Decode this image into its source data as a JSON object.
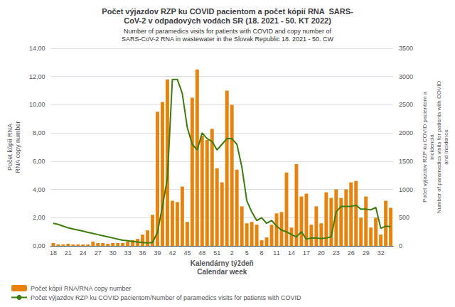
{
  "chart_data": {
    "type": "bar",
    "title": "Počet výjazdov RZP ku COVID pacientom a počet kópií RNA  SARS-\nCoV-2 v odpadových vodách SR (18. 2021 - 50. KT 2022)",
    "subtitle": "Number of paramedics visits for patients with COVID and copy number of\nSARS-CoV-2 RNA in wastewater in the Slovak Republic 18. 2021 - 50. CW",
    "xlabel": "Kalendárny týždeň\nCalendar week",
    "ylabel": "Počet kópií RNA\nRNA copy number",
    "y2label": "Počet výjazdov RZP ku COVID pacientom a\nincidencia\nNumber of paramedics visits for patients with COVID\nand incidence",
    "categories": [
      "18",
      null,
      null,
      "21",
      null,
      null,
      "24",
      null,
      null,
      "27",
      null,
      null,
      "30",
      null,
      null,
      "33",
      null,
      null,
      "36",
      null,
      null,
      "39",
      null,
      null,
      "42",
      null,
      null,
      "45",
      null,
      null,
      "48",
      null,
      null,
      "51",
      null,
      null,
      "2",
      null,
      null,
      "5",
      null,
      null,
      "8",
      null,
      null,
      "11",
      null,
      null,
      "14",
      null,
      null,
      "17",
      null,
      null,
      "20",
      null,
      null,
      "23",
      null,
      null,
      "26",
      null,
      null,
      "29",
      null,
      null,
      "32",
      null,
      null
    ],
    "series": [
      {
        "name": "Počet kópií RNA/RNA copy number",
        "type": "bar",
        "color": "#E8820A",
        "values": [
          0.2,
          0.1,
          0.1,
          0.15,
          0.1,
          0.1,
          0.1,
          0.1,
          0.3,
          0.2,
          0.2,
          0.15,
          0.2,
          0.2,
          0.2,
          0.3,
          0.4,
          0.5,
          0.8,
          1.1,
          2.2,
          9.5,
          10.2,
          11.8,
          3.2,
          3.1,
          4.2,
          1.7,
          10.5,
          12.5,
          7.8,
          7.5,
          8.3,
          5.5,
          4.5,
          11.0,
          10.0,
          5.4,
          2.8,
          1.6,
          1.7,
          1.5,
          0.4,
          0.6,
          1.5,
          2.3,
          2.4,
          5.2,
          1.3,
          5.8,
          3.5,
          3.7,
          1.5,
          2.8,
          1.6,
          3.8,
          3.4,
          4.0,
          3.4,
          4.0,
          4.5,
          4.6,
          2.0,
          3.5,
          1.3,
          2.0,
          0.8,
          3.2,
          2.7
        ]
      },
      {
        "name": "Počet výjazdov RZP ku COVID pacientom/Number of paramedics visits for patients with COVID",
        "type": "line",
        "color": "#3A7D0A",
        "axis": "y2",
        "values": [
          400,
          380,
          350,
          320,
          300,
          280,
          260,
          240,
          220,
          200,
          180,
          160,
          140,
          120,
          100,
          90,
          80,
          70,
          60,
          55,
          60,
          240,
          700,
          1200,
          2950,
          2950,
          2700,
          2100,
          1800,
          1700,
          2000,
          1900,
          1850,
          1700,
          1800,
          1900,
          1900,
          1800,
          1400,
          800,
          600,
          450,
          500,
          400,
          450,
          350,
          280,
          250,
          200,
          160,
          250,
          120,
          140,
          140,
          130,
          140,
          160,
          600,
          700,
          700,
          700,
          720,
          650,
          650,
          640,
          680,
          310,
          350,
          340
        ]
      }
    ],
    "ylim": [
      0,
      14
    ],
    "yticks": [
      {
        "value": 0,
        "label": "0,00"
      },
      {
        "value": 2,
        "label": "2,00"
      },
      {
        "value": 4,
        "label": "4,00"
      },
      {
        "value": 6,
        "label": "6,00"
      },
      {
        "value": 8,
        "label": "8,00"
      },
      {
        "value": 10,
        "label": "10,00"
      },
      {
        "value": 12,
        "label": "12,00"
      },
      {
        "value": 14,
        "label": "14,00"
      }
    ],
    "y2lim": [
      0,
      3500
    ],
    "y2ticks": [
      0,
      500,
      1000,
      1500,
      2000,
      2500,
      3000,
      3500
    ],
    "grid": true,
    "legend": "lower left"
  }
}
